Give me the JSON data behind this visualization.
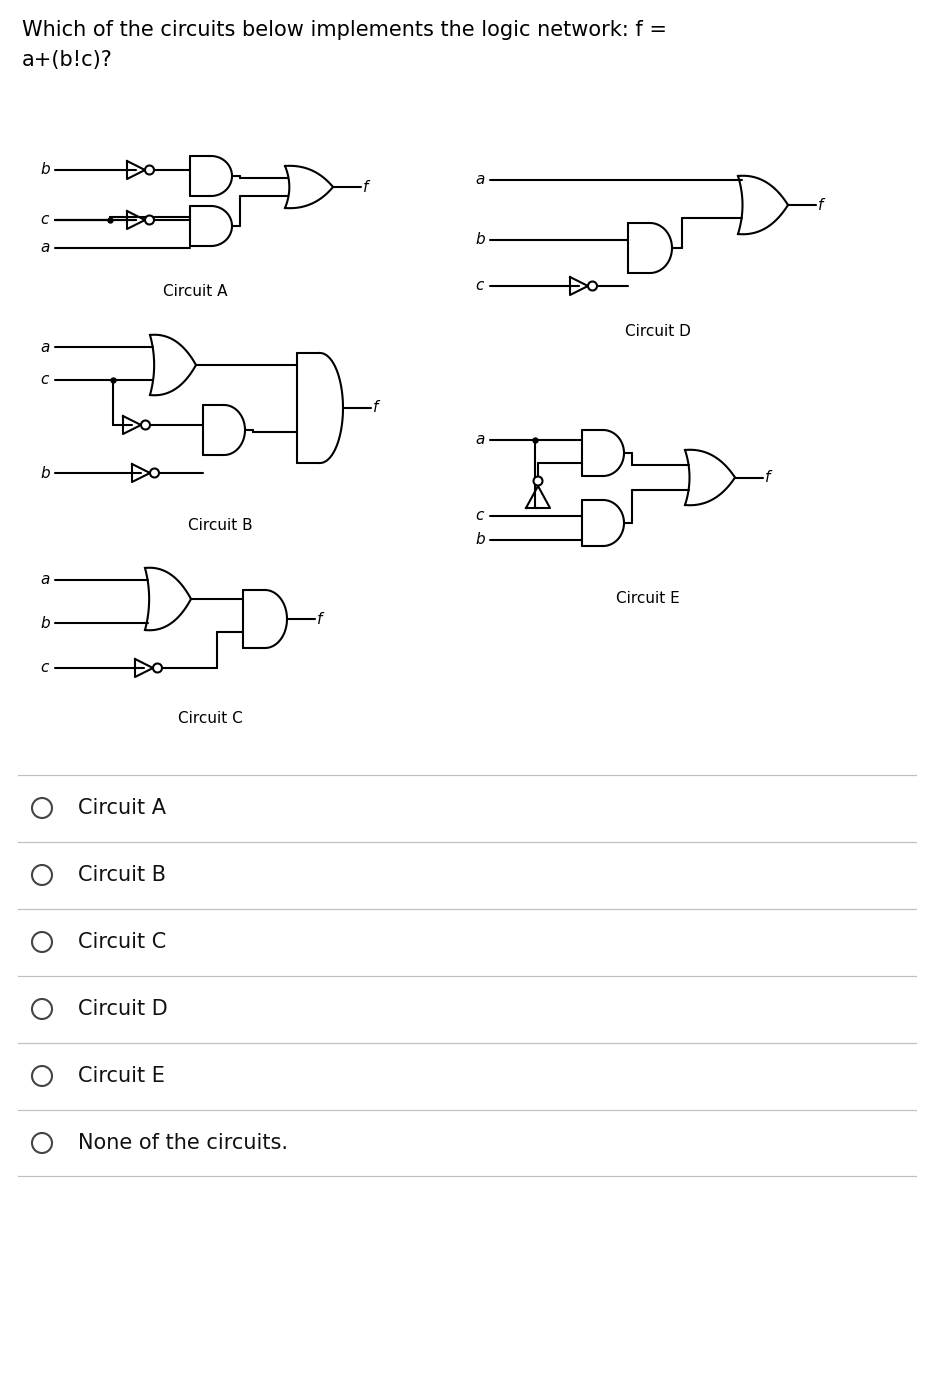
{
  "title_line1": "Which of the circuits below implements the logic network: f =",
  "title_line2": "a+(b!c)?",
  "title_fontsize": 15,
  "bg_color": "#ffffff",
  "text_color": "#000000",
  "line_color": "#000000",
  "options": [
    "Circuit A",
    "Circuit B",
    "Circuit C",
    "Circuit D",
    "Circuit E",
    "None of the circuits."
  ],
  "figw": 9.34,
  "figh": 13.74,
  "dpi": 100
}
